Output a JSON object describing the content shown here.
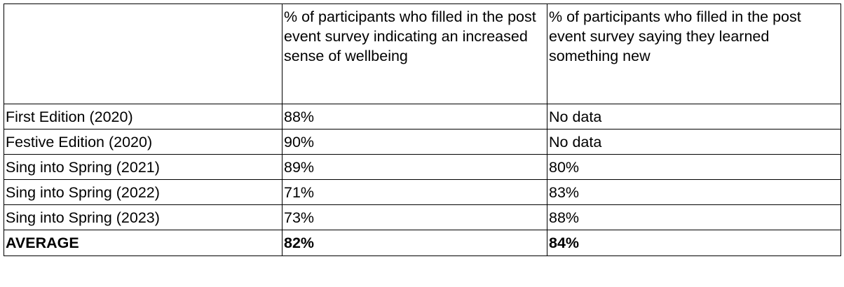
{
  "table": {
    "headers": [
      "",
      "% of participants who filled in the post event survey indicating an increased sense of wellbeing",
      "% of participants who filled in the post event survey saying they learned something new"
    ],
    "rows": [
      {
        "edition": "First Edition (2020)",
        "wellbeing": "88%",
        "learned": "No data"
      },
      {
        "edition": "Festive Edition (2020)",
        "wellbeing": "90%",
        "learned": "No data"
      },
      {
        "edition": "Sing into Spring (2021)",
        "wellbeing": "89%",
        "learned": "80%"
      },
      {
        "edition": "Sing into Spring (2022)",
        "wellbeing": "71%",
        "learned": "83%"
      },
      {
        "edition": "Sing into Spring (2023)",
        "wellbeing": "73%",
        "learned": "88%"
      }
    ],
    "average": {
      "label": "AVERAGE",
      "wellbeing": "82%",
      "learned": "84%"
    }
  }
}
